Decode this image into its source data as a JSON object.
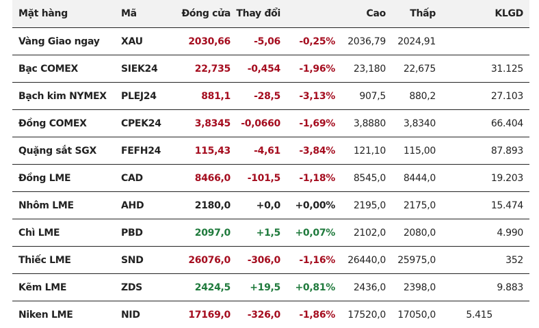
{
  "headers": [
    "Mặt hàng",
    "Mã",
    "Đóng cửa",
    "Thay đổi",
    "",
    "Cao",
    "Thấp",
    "KLGD"
  ],
  "colors": {
    "down": "#a50d1f",
    "up": "#1f7a3c",
    "flat": "#222222"
  },
  "rows": [
    {
      "name": "Vàng Giao ngay",
      "code": "XAU",
      "close": "2030,66",
      "change": "-5,06",
      "pct": "-0,25%",
      "high": "2036,79",
      "low": "2024,91",
      "volume": "",
      "dir": "down"
    },
    {
      "name": "Bạc COMEX",
      "code": "SIEK24",
      "close": "22,735",
      "change": "-0,454",
      "pct": "-1,96%",
      "high": "23,180",
      "low": "22,675",
      "volume": "31.125",
      "dir": "down"
    },
    {
      "name": "Bạch kim NYMEX",
      "code": "PLEJ24",
      "close": "881,1",
      "change": "-28,5",
      "pct": "-3,13%",
      "high": "907,5",
      "low": "880,2",
      "volume": "27.103",
      "dir": "down"
    },
    {
      "name": "Đồng COMEX",
      "code": "CPEK24",
      "close": "3,8345",
      "change": "-0,0660",
      "pct": "-1,69%",
      "high": "3,8880",
      "low": "3,8340",
      "volume": "66.404",
      "dir": "down"
    },
    {
      "name": "Quặng sắt SGX",
      "code": "FEFH24",
      "close": "115,43",
      "change": "-4,61",
      "pct": "-3,84%",
      "high": "121,10",
      "low": "115,00",
      "volume": "87.893",
      "dir": "down"
    },
    {
      "name": "Đồng LME",
      "code": "CAD",
      "close": "8466,0",
      "change": "-101,5",
      "pct": "-1,18%",
      "high": "8545,0",
      "low": "8444,0",
      "volume": "19.203",
      "dir": "down"
    },
    {
      "name": "Nhôm LME",
      "code": "AHD",
      "close": "2180,0",
      "change": "+0,0",
      "pct": "+0,00%",
      "high": "2195,0",
      "low": "2175,0",
      "volume": "15.474",
      "dir": "flat"
    },
    {
      "name": "Chì LME",
      "code": "PBD",
      "close": "2097,0",
      "change": "+1,5",
      "pct": "+0,07%",
      "high": "2102,0",
      "low": "2080,0",
      "volume": "4.990",
      "dir": "up"
    },
    {
      "name": "Thiếc LME",
      "code": "SND",
      "close": "26076,0",
      "change": "-306,0",
      "pct": "-1,16%",
      "high": "26440,0",
      "low": "25975,0",
      "volume": "352",
      "dir": "down"
    },
    {
      "name": "Kẽm LME",
      "code": "ZDS",
      "close": "2424,5",
      "change": "+19,5",
      "pct": "+0,81%",
      "high": "2436,0",
      "low": "2398,0",
      "volume": "9.883",
      "dir": "up"
    },
    {
      "name": "Niken LME",
      "code": "NID",
      "close": "17169,0",
      "change": "-326,0",
      "pct": "-1,86%",
      "high": "17520,0",
      "low": "17050,0",
      "volume": "5.415",
      "dir": "down"
    }
  ]
}
